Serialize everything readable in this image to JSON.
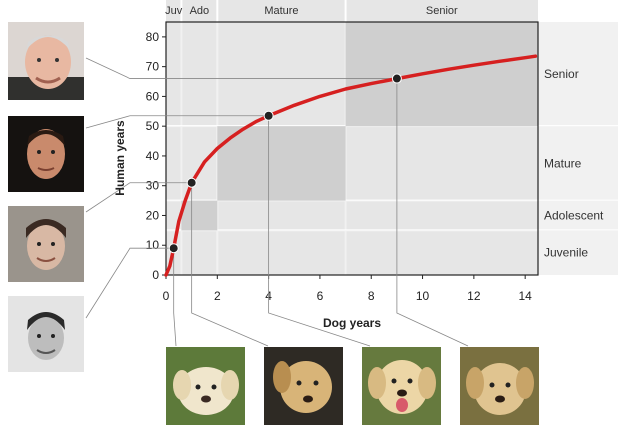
{
  "chart_data": {
    "type": "line",
    "title": "",
    "xlabel": "Dog years",
    "ylabel": "Human years",
    "xlim": [
      0,
      14.5
    ],
    "ylim": [
      0,
      85
    ],
    "x_ticks": [
      0,
      2,
      4,
      6,
      8,
      10,
      12,
      14
    ],
    "y_ticks": [
      0,
      10,
      20,
      30,
      40,
      50,
      60,
      70,
      80
    ],
    "curve_color": "#d62020",
    "series": [
      {
        "values_note": "",
        "x": [
          0.15,
          0.3,
          0.5,
          0.75,
          1,
          1.5,
          2,
          2.5,
          3,
          3.5,
          4,
          5,
          6,
          7,
          8,
          9,
          10,
          11,
          12,
          13,
          14,
          14.4
        ],
        "y": [
          3,
          9,
          18,
          25,
          31,
          38,
          42.5,
          46,
          49,
          51.5,
          53.5,
          57,
          60,
          62.5,
          64.3,
          66,
          67.6,
          69.1,
          70.5,
          71.8,
          73,
          73.5
        ]
      }
    ],
    "points": [
      {
        "x": 0.3,
        "y": 9
      },
      {
        "x": 1,
        "y": 31
      },
      {
        "x": 4,
        "y": 53.5
      },
      {
        "x": 9,
        "y": 66
      }
    ],
    "stage_bands_top": [
      {
        "label": "Juv",
        "x0": 0,
        "x1": 0.6
      },
      {
        "label": "Ado",
        "x0": 0.6,
        "x1": 2
      },
      {
        "label": "Mature",
        "x0": 2,
        "x1": 7
      },
      {
        "label": "Senior",
        "x0": 7,
        "x1": 14.5
      }
    ],
    "stage_bands_right": [
      {
        "label": "Senior",
        "y0": 50,
        "y1": 85
      },
      {
        "label": "Mature",
        "y0": 25,
        "y1": 50
      },
      {
        "label": "Adolescent",
        "y0": 15,
        "y1": 25
      },
      {
        "label": "Juvenile",
        "y0": 0,
        "y1": 15
      }
    ],
    "shaded_regions": [
      {
        "x0": 0.6,
        "x1": 2,
        "y0": 15,
        "y1": 25
      },
      {
        "x0": 2,
        "x1": 7,
        "y0": 25,
        "y1": 50
      },
      {
        "x0": 7,
        "x1": 14.5,
        "y0": 50,
        "y1": 85
      }
    ],
    "grid": false,
    "legend": "none"
  },
  "images": {
    "human_photos": [
      "human-senior-photo",
      "human-mature-photo",
      "human-adolescent-photo",
      "human-juvenile-photo"
    ],
    "dog_photos": [
      "dog-juvenile-photo",
      "dog-adolescent-photo",
      "dog-mature-photo",
      "dog-senior-photo"
    ]
  }
}
